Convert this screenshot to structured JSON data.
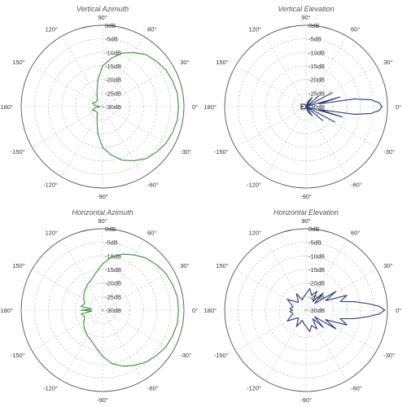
{
  "chart_data": [
    {
      "type": "polar",
      "title": "Vertical Azimuth",
      "radial_ticks": [
        "0dB",
        "-5dB",
        "-10dB",
        "-15dB",
        "-20dB",
        "-25dB",
        "-30dB"
      ],
      "radial_range_db": [
        -30,
        0
      ],
      "angle_ticks": [
        "90°",
        "60°",
        "30°",
        "0°",
        "-30°",
        "-60°",
        "-90°",
        "-120°",
        "-150°",
        "180°",
        "150°",
        "120°"
      ],
      "grid": true,
      "series": [
        {
          "color": "#3a8f3a",
          "angles_deg": [
            0,
            10,
            20,
            30,
            40,
            50,
            60,
            70,
            80,
            90,
            100,
            110,
            120,
            130,
            140,
            150,
            160,
            170,
            180,
            -170,
            -160,
            -150,
            -140,
            -130,
            -120,
            -110,
            -100,
            -90,
            -80,
            -70,
            -60,
            -50,
            -40,
            -30,
            -20,
            -10
          ],
          "gain_db": [
            -2,
            -2,
            -2.5,
            -3,
            -4,
            -5,
            -7,
            -9,
            -12,
            -15,
            -20,
            -24,
            -26,
            -27,
            -27,
            -27,
            -26,
            -27,
            -29,
            -27,
            -26,
            -27,
            -27,
            -27,
            -26,
            -24,
            -20,
            -15,
            -12,
            -9,
            -7,
            -5,
            -4,
            -3,
            -2.5,
            -2
          ]
        }
      ]
    },
    {
      "type": "polar",
      "title": "Vertical Elevation",
      "radial_ticks": [
        "0dB",
        "-5dB",
        "-10dB",
        "-15dB",
        "-20dB",
        "-25dB",
        "-30dB"
      ],
      "radial_range_db": [
        -30,
        0
      ],
      "angle_ticks": [
        "90°",
        "60°",
        "30°",
        "0°",
        "-30°",
        "-60°",
        "-90°",
        "-120°",
        "-150°",
        "180°",
        "150°",
        "120°"
      ],
      "grid": true,
      "series": [
        {
          "color": "#2a3a6e",
          "angles_deg": [
            0,
            3,
            6,
            9,
            12,
            16,
            22,
            28,
            34,
            40,
            48,
            56,
            70,
            90,
            110,
            130,
            150,
            170,
            180,
            -170,
            -150,
            -130,
            -110,
            -90,
            -70,
            -56,
            -48,
            -40,
            -34,
            -28,
            -22,
            -16,
            -12,
            -9,
            -6,
            -3
          ],
          "gain_db": [
            -2,
            -3,
            -6,
            -12,
            -25,
            -17,
            -30,
            -19,
            -30,
            -24,
            -30,
            -26,
            -28,
            -30,
            -29,
            -29,
            -28,
            -28,
            -29,
            -28,
            -28,
            -29,
            -29,
            -30,
            -28,
            -26,
            -30,
            -22,
            -30,
            -18,
            -30,
            -16,
            -25,
            -12,
            -6,
            -3
          ]
        }
      ]
    },
    {
      "type": "polar",
      "title": "Horizontal Azimuth",
      "radial_ticks": [
        "0dB",
        "-5dB",
        "-10dB",
        "-15dB",
        "-20dB",
        "-25dB",
        "-30dB"
      ],
      "radial_range_db": [
        -30,
        0
      ],
      "angle_ticks": [
        "90°",
        "60°",
        "30°",
        "0°",
        "-30°",
        "-60°",
        "-90°",
        "-120°",
        "-150°",
        "180°",
        "150°",
        "120°"
      ],
      "grid": true,
      "series": [
        {
          "color": "#3a8f3a",
          "angles_deg": [
            0,
            10,
            20,
            30,
            40,
            50,
            60,
            70,
            80,
            90,
            100,
            110,
            120,
            130,
            140,
            150,
            160,
            170,
            175,
            180,
            -175,
            -170,
            -160,
            -150,
            -140,
            -130,
            -120,
            -110,
            -100,
            -90,
            -80,
            -70,
            -60,
            -50,
            -40,
            -30,
            -20,
            -10
          ],
          "gain_db": [
            -2,
            -2,
            -2.5,
            -3,
            -4,
            -5,
            -6.5,
            -8,
            -10,
            -13,
            -16,
            -18,
            -19,
            -20,
            -21,
            -22,
            -23,
            -22,
            -26,
            -22,
            -26,
            -22,
            -23,
            -22,
            -21,
            -20,
            -19,
            -18,
            -16,
            -13,
            -10,
            -8,
            -6.5,
            -5,
            -4,
            -3,
            -2.5,
            -2
          ]
        }
      ]
    },
    {
      "type": "polar",
      "title": "Horizontal Elevation",
      "radial_ticks": [
        "0dB",
        "-5dB",
        "-10dB",
        "-15dB",
        "-20dB",
        "-25dB",
        "-30dB"
      ],
      "radial_range_db": [
        -30,
        0
      ],
      "angle_ticks": [
        "90°",
        "60°",
        "30°",
        "0°",
        "-30°",
        "-60°",
        "-90°",
        "-120°",
        "-150°",
        "180°",
        "150°",
        "120°"
      ],
      "grid": true,
      "series": [
        {
          "color": "#2a3a6e",
          "angles_deg": [
            0,
            3,
            6,
            10,
            14,
            20,
            26,
            32,
            38,
            45,
            52,
            60,
            70,
            80,
            90,
            100,
            110,
            120,
            135,
            150,
            165,
            175,
            180,
            -175,
            -165,
            -150,
            -135,
            -120,
            -110,
            -100,
            -90,
            -80,
            -70,
            -60,
            -52,
            -45,
            -38,
            -32,
            -26,
            -20,
            -14,
            -10,
            -6,
            -3
          ],
          "gain_db": [
            -1,
            -3,
            -7,
            -12,
            -17,
            -14,
            -22,
            -17,
            -26,
            -21,
            -26,
            -22,
            -24,
            -22,
            -24,
            -25,
            -26,
            -23,
            -26,
            -22,
            -25,
            -24,
            -25,
            -24,
            -25,
            -22,
            -26,
            -23,
            -26,
            -25,
            -24,
            -22,
            -24,
            -22,
            -26,
            -21,
            -26,
            -17,
            -22,
            -14,
            -17,
            -12,
            -7,
            -3
          ]
        }
      ]
    }
  ]
}
